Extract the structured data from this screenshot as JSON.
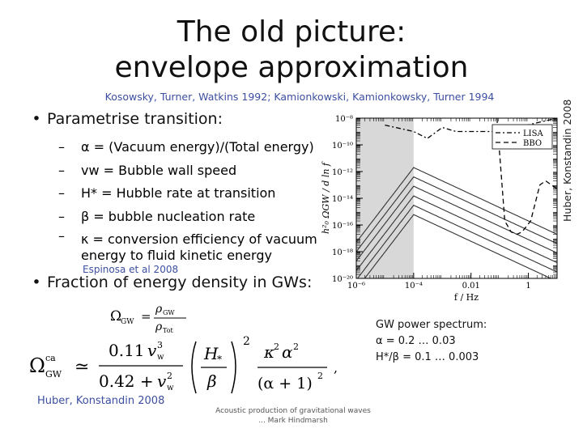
{
  "slide": {
    "title_line1": "The old picture:",
    "title_line2": "envelope approximation",
    "references": "Kosowsky, Turner, Watkins 1992; Kamionkowski, Kamionkowsky, Turner 1994",
    "bullets": [
      {
        "symbol": "•",
        "text": "Parametrise transition:"
      },
      {
        "symbol": "•",
        "text": "Fraction of energy density in GWs:"
      }
    ],
    "sub_items": [
      {
        "symbol": "–",
        "text": "α = (Vacuum energy)/(Total energy)"
      },
      {
        "symbol": "–",
        "text": "vw = Bubble wall speed"
      },
      {
        "symbol": "–",
        "text": "H* = Hubble rate at transition"
      },
      {
        "symbol": "–",
        "text": "β = bubble nucleation rate"
      },
      {
        "symbol": "–",
        "text": "κ = conversion efficiency of vacuum energy to fluid kinetic energy"
      }
    ],
    "citation_espinosa": "Espinosa et al 2008",
    "vertical_credit": "Huber, Konstandin 2008",
    "bottom_credit": "Huber, Konstandin 2008",
    "gw_spectrum": {
      "line1": "GW power spectrum:",
      "line2": "α = 0.2 … 0.03",
      "line3": "H*/β = 0.1 … 0.003"
    },
    "footer": {
      "line1": "Acoustic production of gravitational waves",
      "line2": "... Mark Hindmarsh"
    }
  },
  "equations": {
    "omega_def": {
      "lhs": "Ω",
      "lhs_sub": "GW",
      "eq": "=",
      "num": "ρ",
      "num_sub": "GW",
      "den": "ρ",
      "den_sub": "Tot"
    },
    "omega_ca": {
      "lhs": "Ω",
      "lhs_sup": "ca",
      "lhs_sub": "GW",
      "approx": "≃",
      "num": "0.11",
      "num_var": "v",
      "num_sub": "w",
      "num_sup": "3",
      "den": "0.42 + ",
      "den_var": "v",
      "den_sub": "w",
      "den_sup": "2",
      "h_num": "H",
      "h_num_sub": "*",
      "h_den": "β",
      "h_pow": "2",
      "k_num": "κ",
      "k_num_sup": "2",
      "k_num2": "α",
      "k_num2_sup": "2",
      "k_den": "(α + 1)",
      "k_den_sup": "2",
      "tail": ","
    }
  },
  "chart_data": {
    "type": "line",
    "title": "",
    "xlabel": "f / Hz",
    "ylabel": "h²₀ ΩGW / d ln f",
    "x_scale": "log",
    "y_scale": "log",
    "xlim": [
      1e-06,
      10
    ],
    "ylim": [
      1e-20,
      1e-08
    ],
    "x_ticks": [
      {
        "v": 1e-06,
        "label": "10⁻⁶"
      },
      {
        "v": 0.0001,
        "label": "10⁻⁴"
      },
      {
        "v": 0.01,
        "label": "0.01"
      },
      {
        "v": 1,
        "label": "1"
      }
    ],
    "y_ticks": [
      {
        "v": 1e-08,
        "label": "10⁻⁸"
      },
      {
        "v": 1e-10,
        "label": "10⁻¹⁰"
      },
      {
        "v": 1e-12,
        "label": "10⁻¹²"
      },
      {
        "v": 1e-14,
        "label": "10⁻¹⁴"
      },
      {
        "v": 1e-16,
        "label": "10⁻¹⁶"
      },
      {
        "v": 1e-18,
        "label": "10⁻¹⁸"
      },
      {
        "v": 1e-20,
        "label": "10⁻²⁰"
      }
    ],
    "shaded_region": {
      "x": [
        1e-06,
        0.0001
      ]
    },
    "legend": {
      "placement": "top-right",
      "entries": [
        {
          "name": "LISA",
          "style": "dashdot"
        },
        {
          "name": "BBO",
          "style": "dashed"
        }
      ]
    },
    "series": [
      {
        "peak_f": 0.0001,
        "peak_h": 2e-12
      },
      {
        "peak_f": 0.0001,
        "peak_h": 4e-13
      },
      {
        "peak_f": 0.0001,
        "peak_h": 8e-14
      },
      {
        "peak_f": 0.0001,
        "peak_h": 1.5e-14
      },
      {
        "peak_f": 0.0001,
        "peak_h": 3e-15
      },
      {
        "peak_f": 0.0001,
        "peak_h": 6e-16
      }
    ],
    "sensitivity": [
      {
        "name": "LISA",
        "points": [
          [
            1e-05,
            3e-09
          ],
          [
            0.0001,
            1e-09
          ],
          [
            0.0003,
            3e-10
          ],
          [
            0.001,
            2e-09
          ],
          [
            0.003,
            1e-09
          ],
          [
            0.1,
            1e-09
          ],
          [
            10,
            1e-08
          ]
        ]
      },
      {
        "name": "BBO",
        "points": [
          [
            0.08,
            1e-08
          ],
          [
            0.15,
            2e-16
          ],
          [
            0.25,
            3e-17
          ],
          [
            0.4,
            2e-17
          ],
          [
            0.6,
            3e-17
          ],
          [
            1.2,
            2e-16
          ],
          [
            2.5,
            1e-13
          ],
          [
            4,
            2e-13
          ],
          [
            10,
            5e-14
          ]
        ]
      }
    ]
  }
}
